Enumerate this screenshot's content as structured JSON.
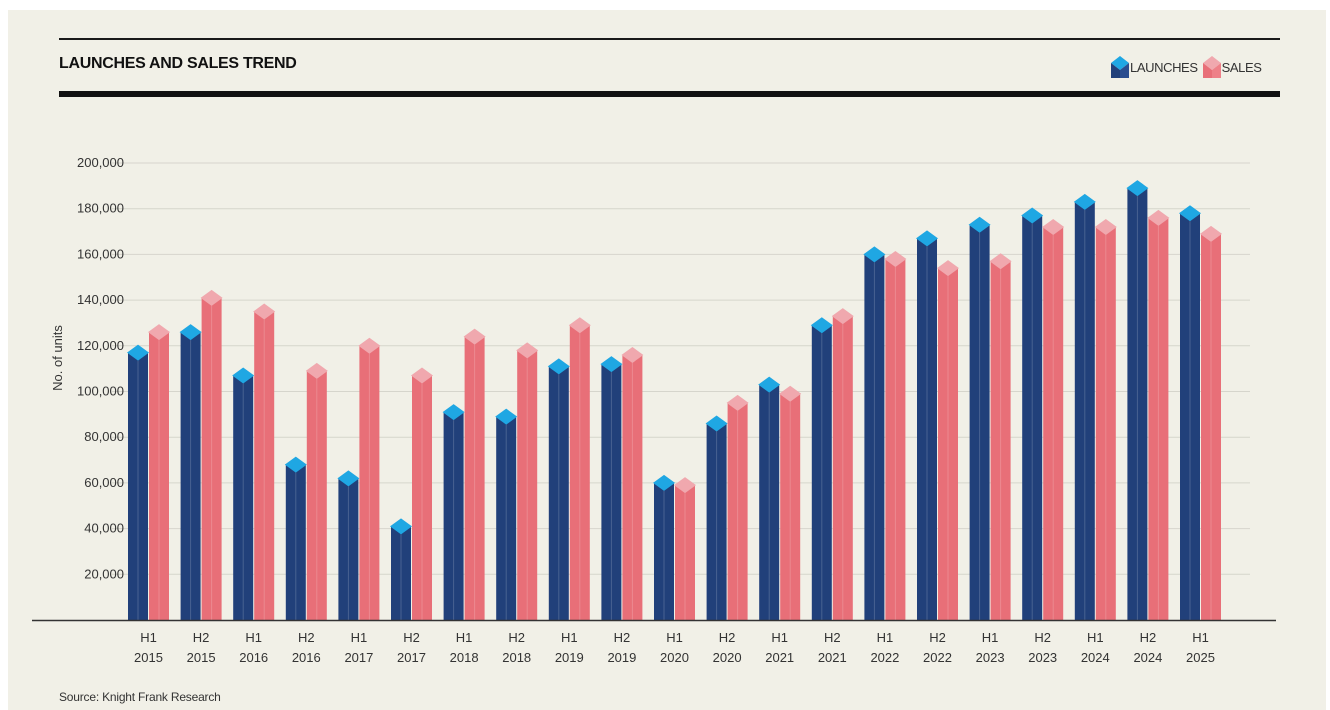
{
  "header": {
    "title": "LAUNCHES AND SALES TREND"
  },
  "legend": {
    "launches_label": "LAUNCHES",
    "sales_label": "SALES"
  },
  "footer": {
    "source": "Source: Knight Frank Research"
  },
  "colors": {
    "launches_body": "#21407a",
    "launches_cap": "#1fa7e3",
    "sales_body": "#e86f78",
    "sales_cap": "#f0a8ae",
    "grid": "#d6d5cc",
    "background": "#f1f0e7"
  },
  "chart_data": {
    "type": "bar",
    "title": "LAUNCHES AND SALES TREND",
    "ylabel": "No. of units",
    "xlabel": "",
    "ylim": [
      0,
      200000
    ],
    "yticks": [
      20000,
      40000,
      60000,
      80000,
      100000,
      120000,
      140000,
      160000,
      180000,
      200000
    ],
    "ytick_labels": [
      "20,000",
      "40,000",
      "60,000",
      "80,000",
      "100,000",
      "120,000",
      "140,000",
      "160,000",
      "180,000",
      "200,000"
    ],
    "grid": true,
    "legend_position": "top-right",
    "categories": [
      [
        "H1",
        "2015"
      ],
      [
        "H2",
        "2015"
      ],
      [
        "H1",
        "2016"
      ],
      [
        "H2",
        "2016"
      ],
      [
        "H1",
        "2017"
      ],
      [
        "H2",
        "2017"
      ],
      [
        "H1",
        "2018"
      ],
      [
        "H2",
        "2018"
      ],
      [
        "H1",
        "2019"
      ],
      [
        "H2",
        "2019"
      ],
      [
        "H1",
        "2020"
      ],
      [
        "H2",
        "2020"
      ],
      [
        "H1",
        "2021"
      ],
      [
        "H2",
        "2021"
      ],
      [
        "H1",
        "2022"
      ],
      [
        "H2",
        "2022"
      ],
      [
        "H1",
        "2023"
      ],
      [
        "H2",
        "2023"
      ],
      [
        "H1",
        "2024"
      ],
      [
        "H2",
        "2024"
      ],
      [
        "H1",
        "2025"
      ]
    ],
    "series": [
      {
        "name": "LAUNCHES",
        "values": [
          117000,
          126000,
          107000,
          68000,
          62000,
          41000,
          91000,
          89000,
          111000,
          112000,
          60000,
          86000,
          103000,
          129000,
          160000,
          167000,
          173000,
          177000,
          183000,
          189000,
          178000
        ]
      },
      {
        "name": "SALES",
        "values": [
          126000,
          141000,
          135000,
          109000,
          120000,
          107000,
          124000,
          118000,
          129000,
          116000,
          59000,
          95000,
          99000,
          133000,
          158000,
          154000,
          157000,
          172000,
          172000,
          176000,
          169000
        ]
      }
    ]
  }
}
